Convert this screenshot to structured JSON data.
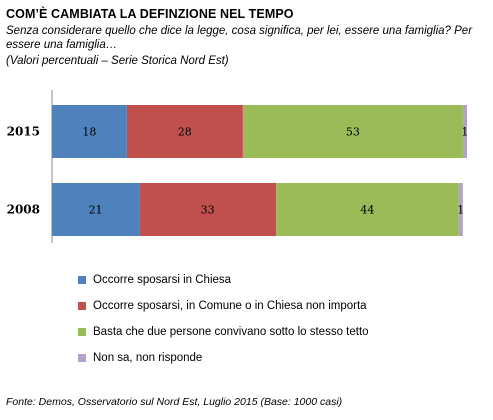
{
  "header": {
    "title": "COM’È CAMBIATA LA DEFINZIONE NEL TEMPO",
    "subtitle": "Senza considerare quello che dice la legge, cosa significa, per lei, essere una famiglia? Per essere una famiglia…",
    "note": "(Valori percentuali – Serie Storica Nord Est)"
  },
  "footer": {
    "source": "Fonte: Demos, Osservatorio sul Nord Est, Luglio 2015 (Base: 1000 casi)"
  },
  "chart_data": {
    "type": "bar",
    "orientation": "horizontal",
    "stacked": true,
    "categories": [
      "2015",
      "2008"
    ],
    "series": [
      {
        "name": "Occorre sposarsi in Chiesa",
        "values": [
          18,
          21
        ],
        "color": "#4f81bd"
      },
      {
        "name": "Occorre sposarsi, in Comune o in Chiesa non importa",
        "values": [
          28,
          33
        ],
        "color": "#c0504d"
      },
      {
        "name": "Basta che due persone convivano sotto lo stesso tetto",
        "values": [
          53,
          44
        ],
        "color": "#9bbb59"
      },
      {
        "name": "Non sa, non risponde",
        "values": [
          1,
          1
        ],
        "color": "#b3a2c7"
      }
    ],
    "xlim": [
      0,
      100
    ],
    "grid": false,
    "legend_position": "bottom-left"
  }
}
